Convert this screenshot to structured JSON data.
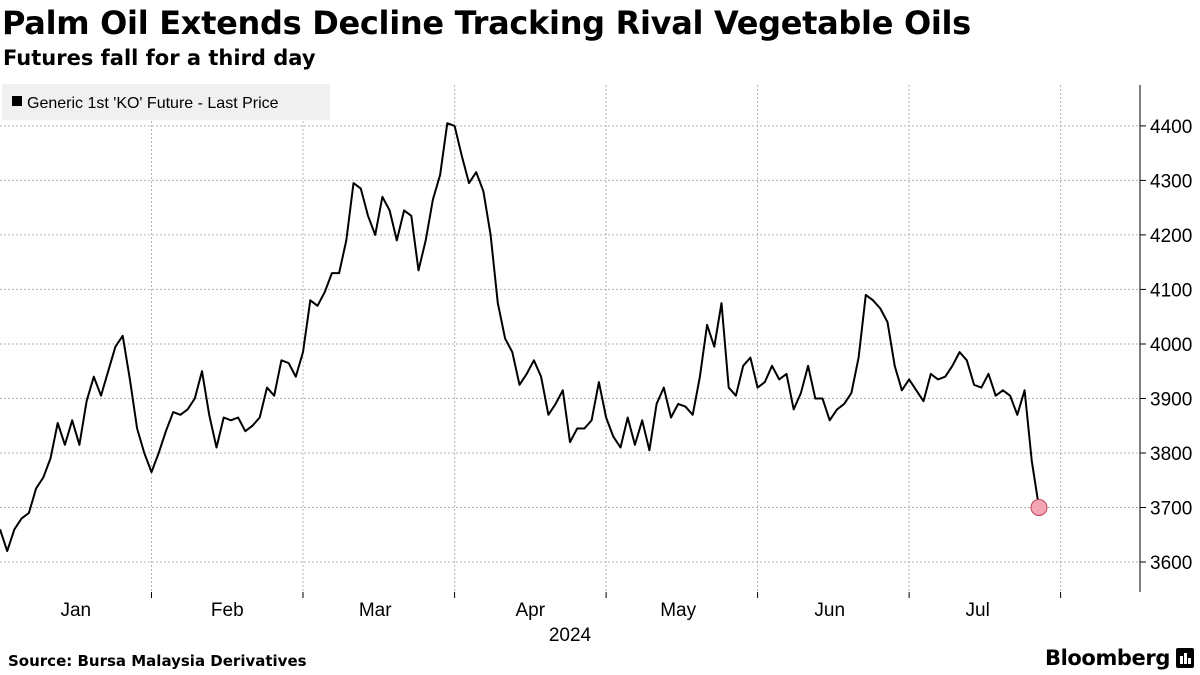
{
  "title": "Palm Oil Extends Decline Tracking Rival Vegetable Oils",
  "subtitle": "Futures fall for a third day",
  "source": "Source: Bursa Malaysia Derivatives",
  "brand": "Bloomberg",
  "colors": {
    "line": "#000000",
    "grid": "#b3b3b3",
    "highlight": "#f4a6b4",
    "highlight_stroke": "#c0405a",
    "legend_bg": "#f0f0f0"
  },
  "chart_data": {
    "type": "line",
    "title": "Palm Oil Extends Decline Tracking Rival Vegetable Oils",
    "subtitle": "Futures fall for a third day",
    "legend": [
      "Generic 1st 'KO' Future - Last Price"
    ],
    "legend_position": "top-left",
    "x_axis_year": "2024",
    "month_labels": [
      "Jan",
      "Feb",
      "Mar",
      "Apr",
      "May",
      "Jun",
      "Jul"
    ],
    "month_label_index": [
      10.5,
      31.5,
      52,
      73.5,
      94,
      115,
      135.5
    ],
    "month_divider_index": [
      21,
      42,
      63,
      84,
      105,
      126,
      147
    ],
    "y_ticks": [
      3600,
      3700,
      3800,
      3900,
      4000,
      4100,
      4200,
      4300,
      4400
    ],
    "ylim": [
      3545,
      4475
    ],
    "xlim": [
      0,
      158
    ],
    "grid": true,
    "highlight_last_point": true,
    "series": [
      {
        "name": "Generic 1st 'KO' Future - Last Price",
        "values": [
          3660,
          3620,
          3660,
          3680,
          3690,
          3735,
          3755,
          3790,
          3855,
          3815,
          3860,
          3815,
          3895,
          3940,
          3905,
          3950,
          3995,
          4015,
          3935,
          3845,
          3800,
          3765,
          3800,
          3840,
          3875,
          3870,
          3880,
          3900,
          3950,
          3870,
          3810,
          3865,
          3860,
          3865,
          3840,
          3850,
          3865,
          3920,
          3905,
          3970,
          3965,
          3940,
          3985,
          4080,
          4070,
          4095,
          4130,
          4130,
          4190,
          4295,
          4285,
          4235,
          4200,
          4270,
          4245,
          4190,
          4245,
          4235,
          4135,
          4190,
          4265,
          4310,
          4405,
          4400,
          4345,
          4295,
          4315,
          4280,
          4200,
          4075,
          4010,
          3985,
          3925,
          3945,
          3970,
          3940,
          3870,
          3890,
          3915,
          3820,
          3845,
          3845,
          3860,
          3930,
          3865,
          3830,
          3810,
          3865,
          3815,
          3860,
          3805,
          3890,
          3920,
          3865,
          3890,
          3885,
          3870,
          3940,
          4035,
          3995,
          4075,
          3920,
          3905,
          3960,
          3975,
          3920,
          3930,
          3960,
          3935,
          3945,
          3880,
          3910,
          3960,
          3900,
          3900,
          3860,
          3880,
          3890,
          3910,
          3975,
          4090,
          4080,
          4065,
          4040,
          3960,
          3915,
          3935,
          3915,
          3895,
          3945,
          3935,
          3940,
          3960,
          3985,
          3970,
          3925,
          3920,
          3945,
          3905,
          3915,
          3905,
          3870,
          3915,
          3785,
          3700
        ]
      }
    ]
  }
}
